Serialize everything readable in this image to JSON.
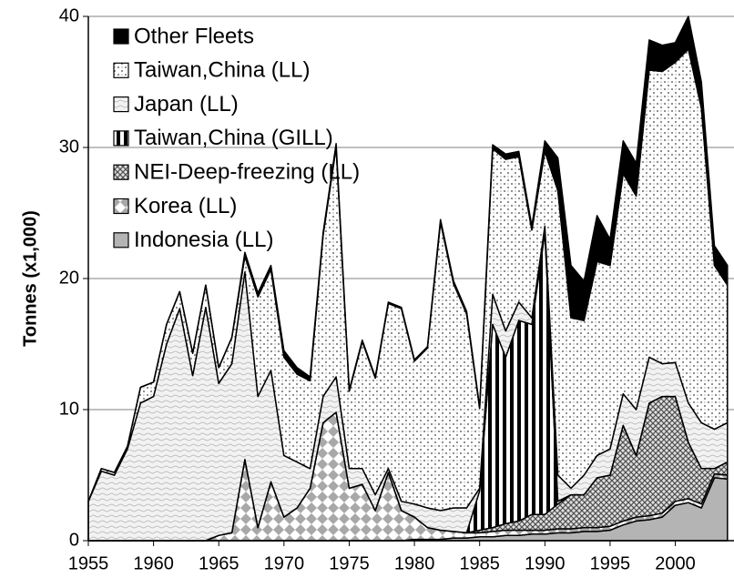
{
  "chart_data": {
    "type": "stacked-area",
    "y_label": "Tonnes (x1,000)",
    "x": [
      1955,
      1956,
      1957,
      1958,
      1959,
      1960,
      1961,
      1962,
      1963,
      1964,
      1965,
      1966,
      1967,
      1968,
      1969,
      1970,
      1971,
      1972,
      1973,
      1974,
      1975,
      1976,
      1977,
      1978,
      1979,
      1980,
      1981,
      1982,
      1983,
      1984,
      1985,
      1986,
      1987,
      1988,
      1989,
      1990,
      1991,
      1992,
      1993,
      1994,
      1995,
      1996,
      1997,
      1998,
      1999,
      2000,
      2001,
      2002,
      2003,
      2004
    ],
    "xlim": [
      1955,
      2004.5
    ],
    "xticks": [
      1955,
      1960,
      1965,
      1970,
      1975,
      1980,
      1985,
      1990,
      1995,
      2000
    ],
    "ylim": [
      0,
      40
    ],
    "yticks": [
      0,
      10,
      20,
      30,
      40
    ],
    "grid": true,
    "legend": "upper-left",
    "series": [
      {
        "name": "Other Fleets",
        "color": "#000000",
        "values": [
          0,
          0,
          0,
          0,
          0,
          0,
          0,
          0,
          0,
          0,
          0,
          0,
          0.3,
          0.3,
          0.3,
          0.5,
          0.5,
          0.3,
          0.2,
          0.3,
          0.1,
          0.1,
          0.1,
          0.1,
          0.1,
          0.1,
          0.1,
          0.2,
          0.2,
          0.2,
          0.1,
          0.3,
          0.4,
          0.4,
          0.3,
          0.8,
          2.5,
          4.0,
          3.0,
          3.5,
          2.0,
          2.5,
          2.5,
          2.3,
          2.0,
          1.5,
          2.5,
          2.0,
          1.5,
          1.5
        ]
      },
      {
        "name": "Taiwan,China (LL)",
        "color": "#404040",
        "values": [
          0,
          0.2,
          0.2,
          0.2,
          1.2,
          1.1,
          1.5,
          1.3,
          1.7,
          1.7,
          1.2,
          2.0,
          1.2,
          7.6,
          7.7,
          7.5,
          6.7,
          6.7,
          12.3,
          17.5,
          5.9,
          9.7,
          8.9,
          12.6,
          14.7,
          10.9,
          12.2,
          22.0,
          17.1,
          14.8,
          6.1,
          11.1,
          13.1,
          11.1,
          6.7,
          5.7,
          21.7,
          13.0,
          11.8,
          14.8,
          14.0,
          16.8,
          16.3,
          21.9,
          22.3,
          22.9,
          27.0,
          24.0,
          12.5,
          10.5
        ]
      },
      {
        "name": "Japan (LL)",
        "color": "#b0b0b0",
        "values": [
          3.0,
          5.3,
          5.0,
          7.0,
          10.5,
          11.0,
          15.0,
          17.7,
          12.6,
          17.8,
          11.6,
          12.9,
          14.3,
          10.0,
          8.5,
          4.7,
          3.5,
          1.5,
          2.0,
          2.7,
          1.5,
          1.2,
          1.2,
          0.3,
          0.7,
          1.0,
          1.5,
          1.5,
          1.8,
          1.9,
          0.2,
          2.3,
          2.0,
          1.4,
          0.5,
          0.5,
          2.0,
          0.5,
          1.5,
          1.7,
          2.0,
          2.4,
          3.5,
          3.5,
          2.5,
          2.6,
          3.0,
          3.5,
          3.0,
          3.0
        ]
      },
      {
        "name": "Taiwan,China (GILL)",
        "color": "#000000",
        "values": [
          0,
          0,
          0,
          0,
          0,
          0,
          0,
          0,
          0,
          0,
          0,
          0,
          0,
          0,
          0,
          0,
          0,
          0,
          0,
          0,
          0,
          0,
          0,
          0,
          0,
          0,
          0,
          0,
          0,
          0,
          3.0,
          15.5,
          12.7,
          15.3,
          14.5,
          21.5,
          0.2,
          0,
          0,
          0,
          0,
          0,
          0,
          0,
          0,
          0,
          0,
          0,
          0,
          0
        ]
      },
      {
        "name": "NEI-Deep-freezing (LL)",
        "color": "#505050",
        "values": [
          0,
          0,
          0,
          0,
          0,
          0,
          0,
          0,
          0,
          0,
          0,
          0,
          0,
          0,
          0,
          0,
          0,
          0,
          0,
          0,
          0,
          0,
          0,
          0,
          0,
          0,
          0,
          0,
          0,
          0,
          0.2,
          0.3,
          0.5,
          0.7,
          1.2,
          1.2,
          1.9,
          2.6,
          2.5,
          3.8,
          3.9,
          7.3,
          4.7,
          8.6,
          8.9,
          8.0,
          4.3,
          2.7,
          0.4,
          1.0
        ]
      },
      {
        "name": "Korea (LL)",
        "color": "#a8a8a8",
        "values": [
          0,
          0,
          0,
          0,
          0,
          0,
          0,
          0,
          0,
          0,
          0.4,
          0.6,
          6.2,
          1.0,
          4.5,
          1.8,
          2.5,
          4.0,
          9.0,
          9.8,
          4.0,
          4.3,
          2.3,
          5.2,
          2.3,
          1.7,
          0.9,
          0.7,
          0.5,
          0.4,
          0.3,
          0.4,
          0.4,
          0.4,
          0.3,
          0.3,
          0.3,
          0.3,
          0.3,
          0.3,
          0.3,
          0.3,
          0.3,
          0.3,
          0.3,
          0.3,
          0.3,
          0.3,
          0.3,
          0.3
        ]
      },
      {
        "name": "Indonesia (LL)",
        "color": "#b4b4b4",
        "values": [
          0,
          0,
          0,
          0,
          0,
          0,
          0,
          0,
          0,
          0,
          0,
          0,
          0,
          0,
          0,
          0,
          0,
          0,
          0,
          0,
          0,
          0,
          0,
          0,
          0,
          0.1,
          0.1,
          0.1,
          0.2,
          0.2,
          0.3,
          0.3,
          0.4,
          0.4,
          0.5,
          0.5,
          0.6,
          0.6,
          0.7,
          0.7,
          0.8,
          1.2,
          1.5,
          1.6,
          1.8,
          2.7,
          2.9,
          2.5,
          4.8,
          4.7
        ]
      }
    ]
  }
}
